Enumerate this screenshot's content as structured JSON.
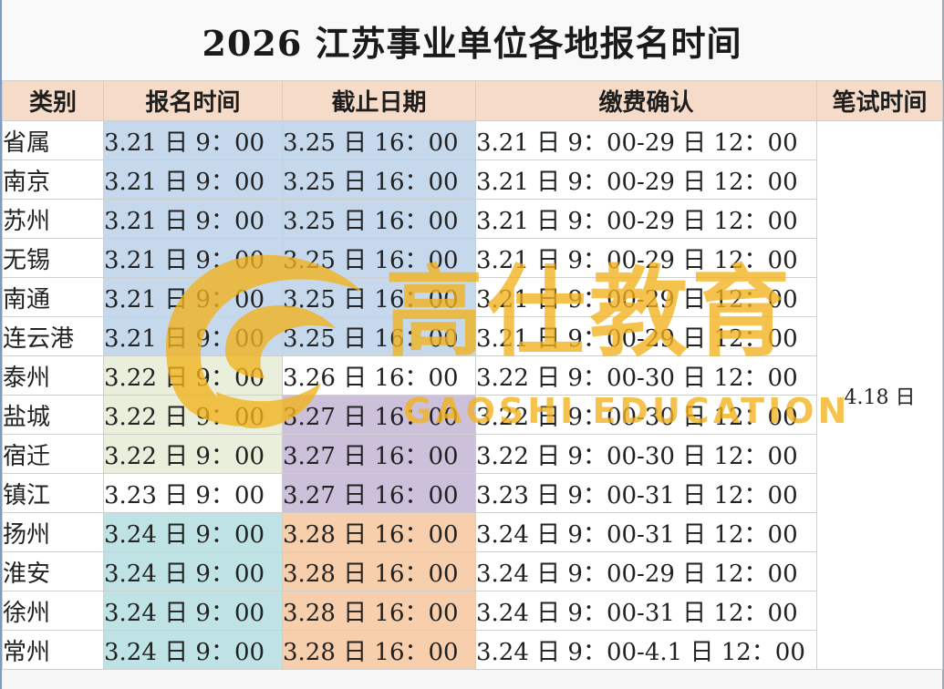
{
  "title": "2026 江苏事业单位各地报名时间",
  "headers": {
    "category": "类别",
    "reg_time": "报名时间",
    "deadline": "截止日期",
    "payment": "缴费确认",
    "exam": "笔试时间"
  },
  "exam_time": "4.18 日",
  "watermark": {
    "cn": "高仕教育",
    "en": "GAOSHI EDUCATION"
  },
  "colors": {
    "header_bg": "#f6dcc8",
    "blue": "#c6d8ec",
    "cream": "#e9efdb",
    "purple": "#ccc0da",
    "teal": "#bfe3e5",
    "peach": "#f7cfad",
    "watermark": "#f2b21c"
  },
  "rows": [
    {
      "category": "省属",
      "reg_time": "3.21 日 9：00",
      "deadline": "3.25 日 16：00",
      "payment": "3.21 日 9：00-29 日 12：00"
    },
    {
      "category": "南京",
      "reg_time": "3.21 日 9：00",
      "deadline": "3.25 日 16：00",
      "payment": "3.21 日 9：00-29 日 12：00"
    },
    {
      "category": "苏州",
      "reg_time": "3.21 日 9：00",
      "deadline": "3.25 日 16：00",
      "payment": "3.21 日 9：00-29 日 12：00"
    },
    {
      "category": "无锡",
      "reg_time": "3.21 日 9：00",
      "deadline": "3.25 日 16：00",
      "payment": "3.21 日 9：00-29 日 12：00"
    },
    {
      "category": "南通",
      "reg_time": "3.21 日 9：00",
      "deadline": "3.25 日 16：00",
      "payment": "3.21 日 9：00-29 日 12：00"
    },
    {
      "category": "连云港",
      "reg_time": "3.21 日 9：00",
      "deadline": "3.25 日 16：00",
      "payment": "3.21 日 9：00-29 日 12：00"
    },
    {
      "category": "泰州",
      "reg_time": "3.22 日 9：00",
      "deadline": "3.26 日 16：00",
      "payment": "3.22 日 9：00-30 日 12：00"
    },
    {
      "category": "盐城",
      "reg_time": "3.22 日 9：00",
      "deadline": "3.27 日 16：00",
      "payment": "3.22 日 9：00-30 日 12：00"
    },
    {
      "category": "宿迁",
      "reg_time": "3.22 日 9：00",
      "deadline": "3.27 日 16：00",
      "payment": "3.22 日 9：00-30 日 12：00"
    },
    {
      "category": "镇江",
      "reg_time": "3.23 日 9：00",
      "deadline": "3.27 日 16：00",
      "payment": "3.23 日 9：00-31 日 12：00"
    },
    {
      "category": "扬州",
      "reg_time": "3.24 日 9：00",
      "deadline": "3.28 日 16：00",
      "payment": "3.24 日 9：00-31 日 12：00"
    },
    {
      "category": "淮安",
      "reg_time": "3.24 日 9：00",
      "deadline": "3.28 日 16：00",
      "payment": "3.24 日 9：00-29 日 12：00"
    },
    {
      "category": "徐州",
      "reg_time": "3.24 日 9：00",
      "deadline": "3.28 日 16：00",
      "payment": "3.24 日 9：00-31 日 12：00"
    },
    {
      "category": "常州",
      "reg_time": "3.24 日 9：00",
      "deadline": "3.28 日 16：00",
      "payment": "3.24 日 9：00-4.1 日 12：00"
    }
  ]
}
